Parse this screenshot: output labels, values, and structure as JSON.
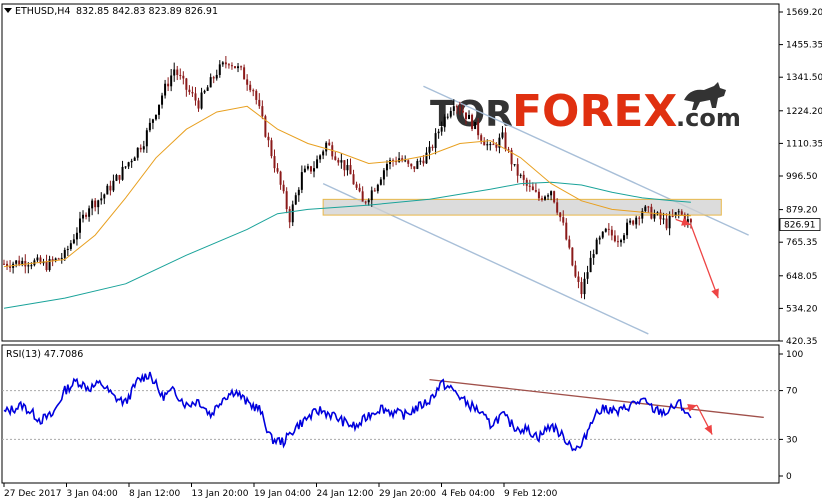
{
  "header": {
    "symbol": "ETHUSD,H4",
    "ohlc": "832.85 842.83 823.89 826.91"
  },
  "watermark": {
    "part1": "TOR",
    "part2": "FOREX",
    "part3": ".com"
  },
  "colors": {
    "bull": "#000000",
    "bear": "#8b1a1a",
    "ma_fast": "#e8a020",
    "ma_slow": "#1aa39a",
    "channel": "#a8bfd8",
    "zone_border": "#e8b84a",
    "arrow": "#ee4444",
    "rsi": "#0000dd",
    "rsi_trend": "#a0504a",
    "watermark_gray": "#333333",
    "watermark_red": "#e03010"
  },
  "chart_data": [
    {
      "type": "candlestick",
      "panel": "price",
      "title": "ETHUSD,H4",
      "ylim": [
        420.35,
        1569.2
      ],
      "y_ticks": [
        {
          "value": 1569.2,
          "label": "1569.20"
        },
        {
          "value": 1455.35,
          "label": "1455.35"
        },
        {
          "value": 1341.5,
          "label": "1341.50"
        },
        {
          "value": 1224.2,
          "label": "1224.20"
        },
        {
          "value": 1110.35,
          "label": "1110.35"
        },
        {
          "value": 996.5,
          "label": "996.50"
        },
        {
          "value": 879.2,
          "label": "879.20"
        },
        {
          "value": 765.35,
          "label": "765.35"
        },
        {
          "value": 648.05,
          "label": "648.05"
        },
        {
          "value": 534.2,
          "label": "534.20"
        },
        {
          "value": 420.35,
          "label": "420.35"
        }
      ],
      "current_price": {
        "value": 826.91,
        "label": "826.91"
      },
      "x_ticks": [
        "27 Dec 2017",
        "3 Jan 04:00",
        "8 Jan 12:00",
        "13 Jan 20:00",
        "19 Jan 04:00",
        "24 Jan 12:00",
        "29 Jan 20:00",
        "4 Feb 04:00",
        "9 Feb 12:00"
      ],
      "close_path": [
        {
          "t": 0,
          "v": 690
        },
        {
          "t": 8,
          "v": 700
        },
        {
          "t": 14,
          "v": 685
        },
        {
          "t": 20,
          "v": 720
        },
        {
          "t": 28,
          "v": 895
        },
        {
          "t": 32,
          "v": 920
        },
        {
          "t": 38,
          "v": 1000
        },
        {
          "t": 42,
          "v": 1060
        },
        {
          "t": 46,
          "v": 1120
        },
        {
          "t": 52,
          "v": 1280
        },
        {
          "t": 56,
          "v": 1370
        },
        {
          "t": 60,
          "v": 1300
        },
        {
          "t": 64,
          "v": 1250
        },
        {
          "t": 70,
          "v": 1360
        },
        {
          "t": 74,
          "v": 1400
        },
        {
          "t": 78,
          "v": 1360
        },
        {
          "t": 82,
          "v": 1300
        },
        {
          "t": 86,
          "v": 1150
        },
        {
          "t": 90,
          "v": 1000
        },
        {
          "t": 94,
          "v": 850
        },
        {
          "t": 98,
          "v": 1000
        },
        {
          "t": 102,
          "v": 1030
        },
        {
          "t": 106,
          "v": 1110
        },
        {
          "t": 110,
          "v": 1060
        },
        {
          "t": 114,
          "v": 1000
        },
        {
          "t": 118,
          "v": 900
        },
        {
          "t": 122,
          "v": 960
        },
        {
          "t": 126,
          "v": 1040
        },
        {
          "t": 130,
          "v": 1060
        },
        {
          "t": 134,
          "v": 1020
        },
        {
          "t": 140,
          "v": 1080
        },
        {
          "t": 144,
          "v": 1180
        },
        {
          "t": 148,
          "v": 1260
        },
        {
          "t": 152,
          "v": 1210
        },
        {
          "t": 156,
          "v": 1150
        },
        {
          "t": 160,
          "v": 1090
        },
        {
          "t": 164,
          "v": 1130
        },
        {
          "t": 168,
          "v": 1020
        },
        {
          "t": 172,
          "v": 960
        },
        {
          "t": 176,
          "v": 920
        },
        {
          "t": 180,
          "v": 950
        },
        {
          "t": 184,
          "v": 820
        },
        {
          "t": 188,
          "v": 640
        },
        {
          "t": 190,
          "v": 590
        },
        {
          "t": 194,
          "v": 740
        },
        {
          "t": 198,
          "v": 800
        },
        {
          "t": 202,
          "v": 780
        },
        {
          "t": 206,
          "v": 830
        },
        {
          "t": 210,
          "v": 880
        },
        {
          "t": 214,
          "v": 860
        },
        {
          "t": 218,
          "v": 830
        },
        {
          "t": 222,
          "v": 870
        },
        {
          "t": 226,
          "v": 826.91
        }
      ],
      "ma_fast": [
        {
          "t": 0,
          "v": 680
        },
        {
          "t": 20,
          "v": 705
        },
        {
          "t": 30,
          "v": 790
        },
        {
          "t": 40,
          "v": 920
        },
        {
          "t": 50,
          "v": 1060
        },
        {
          "t": 60,
          "v": 1160
        },
        {
          "t": 70,
          "v": 1220
        },
        {
          "t": 80,
          "v": 1240
        },
        {
          "t": 90,
          "v": 1160
        },
        {
          "t": 100,
          "v": 1110
        },
        {
          "t": 110,
          "v": 1080
        },
        {
          "t": 120,
          "v": 1040
        },
        {
          "t": 130,
          "v": 1050
        },
        {
          "t": 140,
          "v": 1070
        },
        {
          "t": 150,
          "v": 1110
        },
        {
          "t": 160,
          "v": 1120
        },
        {
          "t": 170,
          "v": 1060
        },
        {
          "t": 180,
          "v": 970
        },
        {
          "t": 190,
          "v": 910
        },
        {
          "t": 200,
          "v": 880
        },
        {
          "t": 210,
          "v": 870
        },
        {
          "t": 220,
          "v": 860
        },
        {
          "t": 226,
          "v": 858
        }
      ],
      "ma_slow": [
        {
          "t": 0,
          "v": 535
        },
        {
          "t": 20,
          "v": 570
        },
        {
          "t": 40,
          "v": 620
        },
        {
          "t": 60,
          "v": 720
        },
        {
          "t": 80,
          "v": 810
        },
        {
          "t": 90,
          "v": 865
        },
        {
          "t": 100,
          "v": 880
        },
        {
          "t": 120,
          "v": 895
        },
        {
          "t": 140,
          "v": 915
        },
        {
          "t": 160,
          "v": 950
        },
        {
          "t": 170,
          "v": 970
        },
        {
          "t": 180,
          "v": 975
        },
        {
          "t": 190,
          "v": 965
        },
        {
          "t": 200,
          "v": 940
        },
        {
          "t": 210,
          "v": 920
        },
        {
          "t": 220,
          "v": 910
        },
        {
          "t": 226,
          "v": 905
        }
      ],
      "channel_upper": [
        {
          "t": 138,
          "v": 1310
        },
        {
          "t": 245,
          "v": 790
        }
      ],
      "channel_lower": [
        {
          "t": 105,
          "v": 970
        },
        {
          "t": 212,
          "v": 445
        }
      ],
      "resistance_zone": {
        "t_start": 105,
        "t_end": 236,
        "v_low": 860,
        "v_high": 915
      },
      "forecast_arrows": [
        {
          "from": {
            "t": 221,
            "v": 845
          },
          "to": {
            "t": 226,
            "v": 826
          }
        },
        {
          "from": {
            "t": 226,
            "v": 826
          },
          "to": {
            "t": 235,
            "v": 570
          }
        }
      ]
    },
    {
      "type": "line",
      "panel": "rsi",
      "title": "RSI(13) 47.7086",
      "ylim": [
        0,
        100
      ],
      "y_ticks": [
        {
          "value": 100,
          "label": "100"
        },
        {
          "value": 70,
          "label": "70"
        },
        {
          "value": 30,
          "label": "30"
        },
        {
          "value": 0,
          "label": "0"
        }
      ],
      "levels": [
        70,
        30
      ],
      "series": [
        {
          "points": [
            {
              "t": 0,
              "v": 52
            },
            {
              "t": 6,
              "v": 58
            },
            {
              "t": 12,
              "v": 46
            },
            {
              "t": 16,
              "v": 50
            },
            {
              "t": 20,
              "v": 70
            },
            {
              "t": 24,
              "v": 78
            },
            {
              "t": 28,
              "v": 72
            },
            {
              "t": 32,
              "v": 76
            },
            {
              "t": 36,
              "v": 65
            },
            {
              "t": 40,
              "v": 60
            },
            {
              "t": 44,
              "v": 78
            },
            {
              "t": 48,
              "v": 84
            },
            {
              "t": 52,
              "v": 65
            },
            {
              "t": 56,
              "v": 70
            },
            {
              "t": 60,
              "v": 58
            },
            {
              "t": 64,
              "v": 62
            },
            {
              "t": 68,
              "v": 50
            },
            {
              "t": 72,
              "v": 64
            },
            {
              "t": 76,
              "v": 70
            },
            {
              "t": 80,
              "v": 60
            },
            {
              "t": 84,
              "v": 55
            },
            {
              "t": 88,
              "v": 30
            },
            {
              "t": 92,
              "v": 28
            },
            {
              "t": 96,
              "v": 40
            },
            {
              "t": 100,
              "v": 48
            },
            {
              "t": 104,
              "v": 54
            },
            {
              "t": 108,
              "v": 50
            },
            {
              "t": 112,
              "v": 44
            },
            {
              "t": 116,
              "v": 40
            },
            {
              "t": 120,
              "v": 50
            },
            {
              "t": 124,
              "v": 56
            },
            {
              "t": 128,
              "v": 52
            },
            {
              "t": 132,
              "v": 50
            },
            {
              "t": 136,
              "v": 56
            },
            {
              "t": 140,
              "v": 62
            },
            {
              "t": 144,
              "v": 76
            },
            {
              "t": 148,
              "v": 70
            },
            {
              "t": 152,
              "v": 60
            },
            {
              "t": 156,
              "v": 54
            },
            {
              "t": 160,
              "v": 42
            },
            {
              "t": 164,
              "v": 50
            },
            {
              "t": 168,
              "v": 40
            },
            {
              "t": 172,
              "v": 38
            },
            {
              "t": 176,
              "v": 32
            },
            {
              "t": 180,
              "v": 42
            },
            {
              "t": 184,
              "v": 32
            },
            {
              "t": 188,
              "v": 22
            },
            {
              "t": 190,
              "v": 24
            },
            {
              "t": 194,
              "v": 50
            },
            {
              "t": 198,
              "v": 56
            },
            {
              "t": 202,
              "v": 52
            },
            {
              "t": 206,
              "v": 58
            },
            {
              "t": 210,
              "v": 62
            },
            {
              "t": 214,
              "v": 54
            },
            {
              "t": 218,
              "v": 52
            },
            {
              "t": 222,
              "v": 60
            },
            {
              "t": 226,
              "v": 47.7086
            }
          ]
        }
      ],
      "trendline": [
        {
          "t": 140,
          "v": 79
        },
        {
          "t": 250,
          "v": 48
        }
      ],
      "forecast_arrows": [
        {
          "from": {
            "t": 224,
            "v": 55
          },
          "to": {
            "t": 228,
            "v": 58
          }
        },
        {
          "from": {
            "t": 228,
            "v": 58
          },
          "to": {
            "t": 233,
            "v": 34
          }
        }
      ]
    }
  ]
}
